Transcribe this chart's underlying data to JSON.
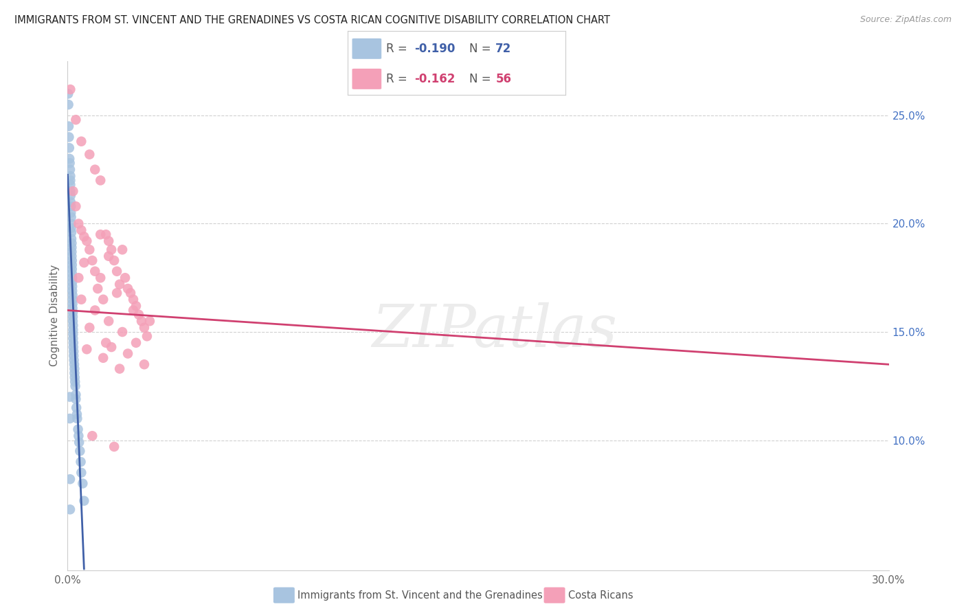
{
  "title": "IMMIGRANTS FROM ST. VINCENT AND THE GRENADINES VS COSTA RICAN COGNITIVE DISABILITY CORRELATION CHART",
  "source": "Source: ZipAtlas.com",
  "ylabel": "Cognitive Disability",
  "r_blue": -0.19,
  "n_blue": 72,
  "r_pink": -0.162,
  "n_pink": 56,
  "xlim": [
    0.0,
    0.3
  ],
  "ylim": [
    0.04,
    0.275
  ],
  "x_ticks": [
    0.0,
    0.05,
    0.1,
    0.15,
    0.2,
    0.25,
    0.3
  ],
  "x_tick_labels": [
    "0.0%",
    "",
    "",
    "",
    "",
    "",
    "30.0%"
  ],
  "y_ticks_right": [
    0.1,
    0.15,
    0.2,
    0.25
  ],
  "y_tick_labels_right": [
    "10.0%",
    "15.0%",
    "20.0%",
    "25.0%"
  ],
  "legend_label_blue": "Immigrants from St. Vincent and the Grenadines",
  "legend_label_pink": "Costa Ricans",
  "color_blue": "#a8c4e0",
  "color_blue_line": "#4060a8",
  "color_pink": "#f4a0b8",
  "color_pink_line": "#d04070",
  "watermark": "ZIPatlas",
  "blue_x": [
    0.0002,
    0.0003,
    0.0004,
    0.0005,
    0.0006,
    0.0007,
    0.0008,
    0.0009,
    0.001,
    0.001,
    0.001,
    0.001,
    0.0011,
    0.0011,
    0.0012,
    0.0012,
    0.0013,
    0.0013,
    0.0013,
    0.0014,
    0.0014,
    0.0015,
    0.0015,
    0.0015,
    0.0015,
    0.0016,
    0.0016,
    0.0016,
    0.0016,
    0.0017,
    0.0017,
    0.0017,
    0.0017,
    0.0018,
    0.0018,
    0.0018,
    0.0018,
    0.0019,
    0.0019,
    0.0019,
    0.002,
    0.002,
    0.002,
    0.002,
    0.0021,
    0.0021,
    0.0022,
    0.0022,
    0.0023,
    0.0024,
    0.0025,
    0.0025,
    0.0026,
    0.0027,
    0.0028,
    0.003,
    0.003,
    0.0032,
    0.0034,
    0.0035,
    0.0038,
    0.004,
    0.0042,
    0.0045,
    0.0048,
    0.005,
    0.0055,
    0.006,
    0.0008,
    0.0008,
    0.0009,
    0.0009
  ],
  "blue_y": [
    0.26,
    0.255,
    0.245,
    0.24,
    0.235,
    0.23,
    0.228,
    0.225,
    0.222,
    0.22,
    0.218,
    0.215,
    0.213,
    0.21,
    0.208,
    0.205,
    0.203,
    0.2,
    0.198,
    0.196,
    0.193,
    0.191,
    0.189,
    0.187,
    0.185,
    0.183,
    0.181,
    0.179,
    0.177,
    0.175,
    0.173,
    0.171,
    0.169,
    0.167,
    0.165,
    0.163,
    0.161,
    0.159,
    0.157,
    0.155,
    0.153,
    0.151,
    0.149,
    0.147,
    0.145,
    0.143,
    0.141,
    0.139,
    0.137,
    0.135,
    0.133,
    0.131,
    0.129,
    0.127,
    0.125,
    0.121,
    0.119,
    0.115,
    0.112,
    0.11,
    0.105,
    0.102,
    0.099,
    0.095,
    0.09,
    0.085,
    0.08,
    0.072,
    0.12,
    0.11,
    0.082,
    0.068
  ],
  "pink_x": [
    0.001,
    0.002,
    0.003,
    0.003,
    0.004,
    0.005,
    0.005,
    0.006,
    0.007,
    0.008,
    0.008,
    0.009,
    0.01,
    0.01,
    0.011,
    0.012,
    0.012,
    0.013,
    0.014,
    0.015,
    0.015,
    0.016,
    0.017,
    0.018,
    0.019,
    0.02,
    0.021,
    0.022,
    0.023,
    0.024,
    0.025,
    0.026,
    0.027,
    0.028,
    0.029,
    0.006,
    0.012,
    0.018,
    0.024,
    0.03,
    0.005,
    0.01,
    0.015,
    0.02,
    0.025,
    0.008,
    0.016,
    0.022,
    0.004,
    0.014,
    0.007,
    0.013,
    0.019,
    0.009,
    0.017,
    0.028
  ],
  "pink_y": [
    0.262,
    0.215,
    0.208,
    0.248,
    0.2,
    0.197,
    0.238,
    0.194,
    0.192,
    0.188,
    0.232,
    0.183,
    0.178,
    0.225,
    0.17,
    0.195,
    0.22,
    0.165,
    0.195,
    0.192,
    0.185,
    0.188,
    0.183,
    0.178,
    0.172,
    0.188,
    0.175,
    0.17,
    0.168,
    0.165,
    0.162,
    0.158,
    0.155,
    0.152,
    0.148,
    0.182,
    0.175,
    0.168,
    0.16,
    0.155,
    0.165,
    0.16,
    0.155,
    0.15,
    0.145,
    0.152,
    0.143,
    0.14,
    0.175,
    0.145,
    0.142,
    0.138,
    0.133,
    0.102,
    0.097,
    0.135
  ]
}
